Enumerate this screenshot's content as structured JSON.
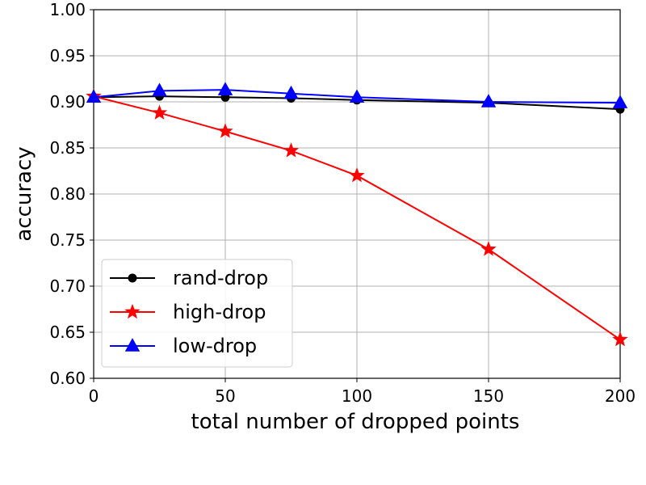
{
  "chart_data": {
    "type": "line",
    "xlabel": "total number of dropped points",
    "ylabel": "accuracy",
    "xlim": [
      0,
      200
    ],
    "ylim": [
      0.6,
      1.0
    ],
    "x_ticks": [
      "0",
      "50",
      "100",
      "150",
      "200"
    ],
    "y_ticks": [
      "0.60",
      "0.65",
      "0.70",
      "0.75",
      "0.80",
      "0.85",
      "0.90",
      "0.95",
      "1.00"
    ],
    "grid": true,
    "legend_position": "lower-left",
    "series": [
      {
        "name": "rand-drop",
        "color": "#000000",
        "marker": "circle",
        "x": [
          0,
          25,
          50,
          75,
          100,
          150,
          200
        ],
        "y": [
          0.905,
          0.906,
          0.905,
          0.904,
          0.902,
          0.899,
          0.892
        ]
      },
      {
        "name": "high-drop",
        "color": "#ff0000",
        "marker": "star",
        "x": [
          0,
          25,
          50,
          75,
          100,
          150,
          200
        ],
        "y": [
          0.906,
          0.888,
          0.868,
          0.847,
          0.82,
          0.74,
          0.642
        ]
      },
      {
        "name": "low-drop",
        "color": "#0000ff",
        "marker": "triangle",
        "x": [
          0,
          25,
          50,
          75,
          100,
          150,
          200
        ],
        "y": [
          0.905,
          0.912,
          0.913,
          0.909,
          0.905,
          0.9,
          0.899
        ]
      }
    ]
  }
}
